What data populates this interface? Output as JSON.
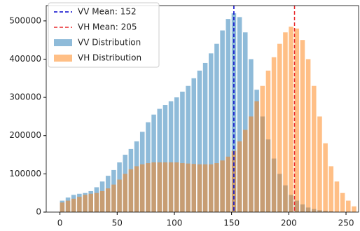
{
  "chart_data": {
    "type": "histogram",
    "bins": [
      0,
      5,
      10,
      15,
      20,
      25,
      30,
      35,
      40,
      45,
      50,
      55,
      60,
      65,
      70,
      75,
      80,
      85,
      90,
      95,
      100,
      105,
      110,
      115,
      120,
      125,
      130,
      135,
      140,
      145,
      150,
      155,
      160,
      165,
      170,
      175,
      180,
      185,
      190,
      195,
      200,
      205,
      210,
      215,
      220,
      225,
      230,
      235,
      240,
      245,
      250,
      255,
      260
    ],
    "series": [
      {
        "name": "VV Distribution",
        "color": "#1f77b4",
        "values": [
          30000,
          38000,
          45000,
          48000,
          50000,
          55000,
          65000,
          80000,
          95000,
          110000,
          130000,
          150000,
          165000,
          185000,
          210000,
          235000,
          255000,
          270000,
          280000,
          290000,
          300000,
          315000,
          330000,
          350000,
          370000,
          390000,
          415000,
          440000,
          475000,
          505000,
          520000,
          510000,
          470000,
          400000,
          320000,
          250000,
          190000,
          140000,
          100000,
          70000,
          45000,
          30000,
          20000,
          12000,
          8000,
          5000,
          3000,
          2000,
          1000,
          500,
          200,
          100
        ]
      },
      {
        "name": "VH Distribution",
        "color": "#ff7f0e",
        "values": [
          25000,
          30000,
          35000,
          40000,
          45000,
          48000,
          50000,
          55000,
          62000,
          72000,
          85000,
          100000,
          112000,
          120000,
          125000,
          128000,
          130000,
          130000,
          130000,
          130000,
          130000,
          128000,
          127000,
          126000,
          125000,
          125000,
          125000,
          128000,
          135000,
          145000,
          160000,
          185000,
          215000,
          250000,
          290000,
          330000,
          370000,
          405000,
          440000,
          470000,
          485000,
          480000,
          450000,
          400000,
          330000,
          250000,
          180000,
          120000,
          80000,
          50000,
          30000,
          15000
        ]
      }
    ],
    "mean_lines": [
      {
        "name": "VV Mean: 152",
        "value": 152,
        "color": "#0000cc"
      },
      {
        "name": "VH Mean: 205",
        "value": 205,
        "color": "#e8282b"
      }
    ],
    "xlim": [
      -12,
      261
    ],
    "xticks": [
      0,
      50,
      100,
      150,
      200,
      250
    ],
    "ylim": [
      0,
      540000
    ],
    "yticks": [
      0,
      100000,
      200000,
      300000,
      400000,
      500000
    ],
    "legend": "upper-left"
  }
}
